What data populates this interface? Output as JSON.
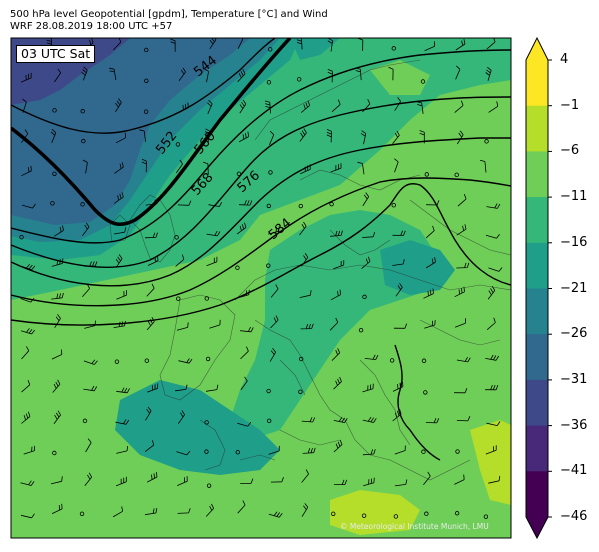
{
  "header": {
    "title_line1": "500 hPa level Geopotential [gpdm], Temperature [°C] and Wind",
    "title_line2": "WRF 28.08.2019 18:00 UTC +57"
  },
  "map": {
    "valid_label": "03 UTC Sat",
    "credit": "© Meteorological Institute Munich, LMU",
    "contour_labels": [
      "544",
      "552",
      "560",
      "568",
      "576",
      "584"
    ]
  },
  "colorbar": {
    "ticks": [
      "4",
      "−1",
      "−6",
      "−11",
      "−16",
      "−21",
      "−26",
      "−31",
      "−36",
      "−41",
      "−46"
    ],
    "colors": [
      "#fde725",
      "#b5de2b",
      "#6ece58",
      "#35b779",
      "#1f9e89",
      "#26828e",
      "#31688e",
      "#3e4989",
      "#482878",
      "#440154"
    ],
    "over_color": "#fde725",
    "under_color": "#440154"
  }
}
